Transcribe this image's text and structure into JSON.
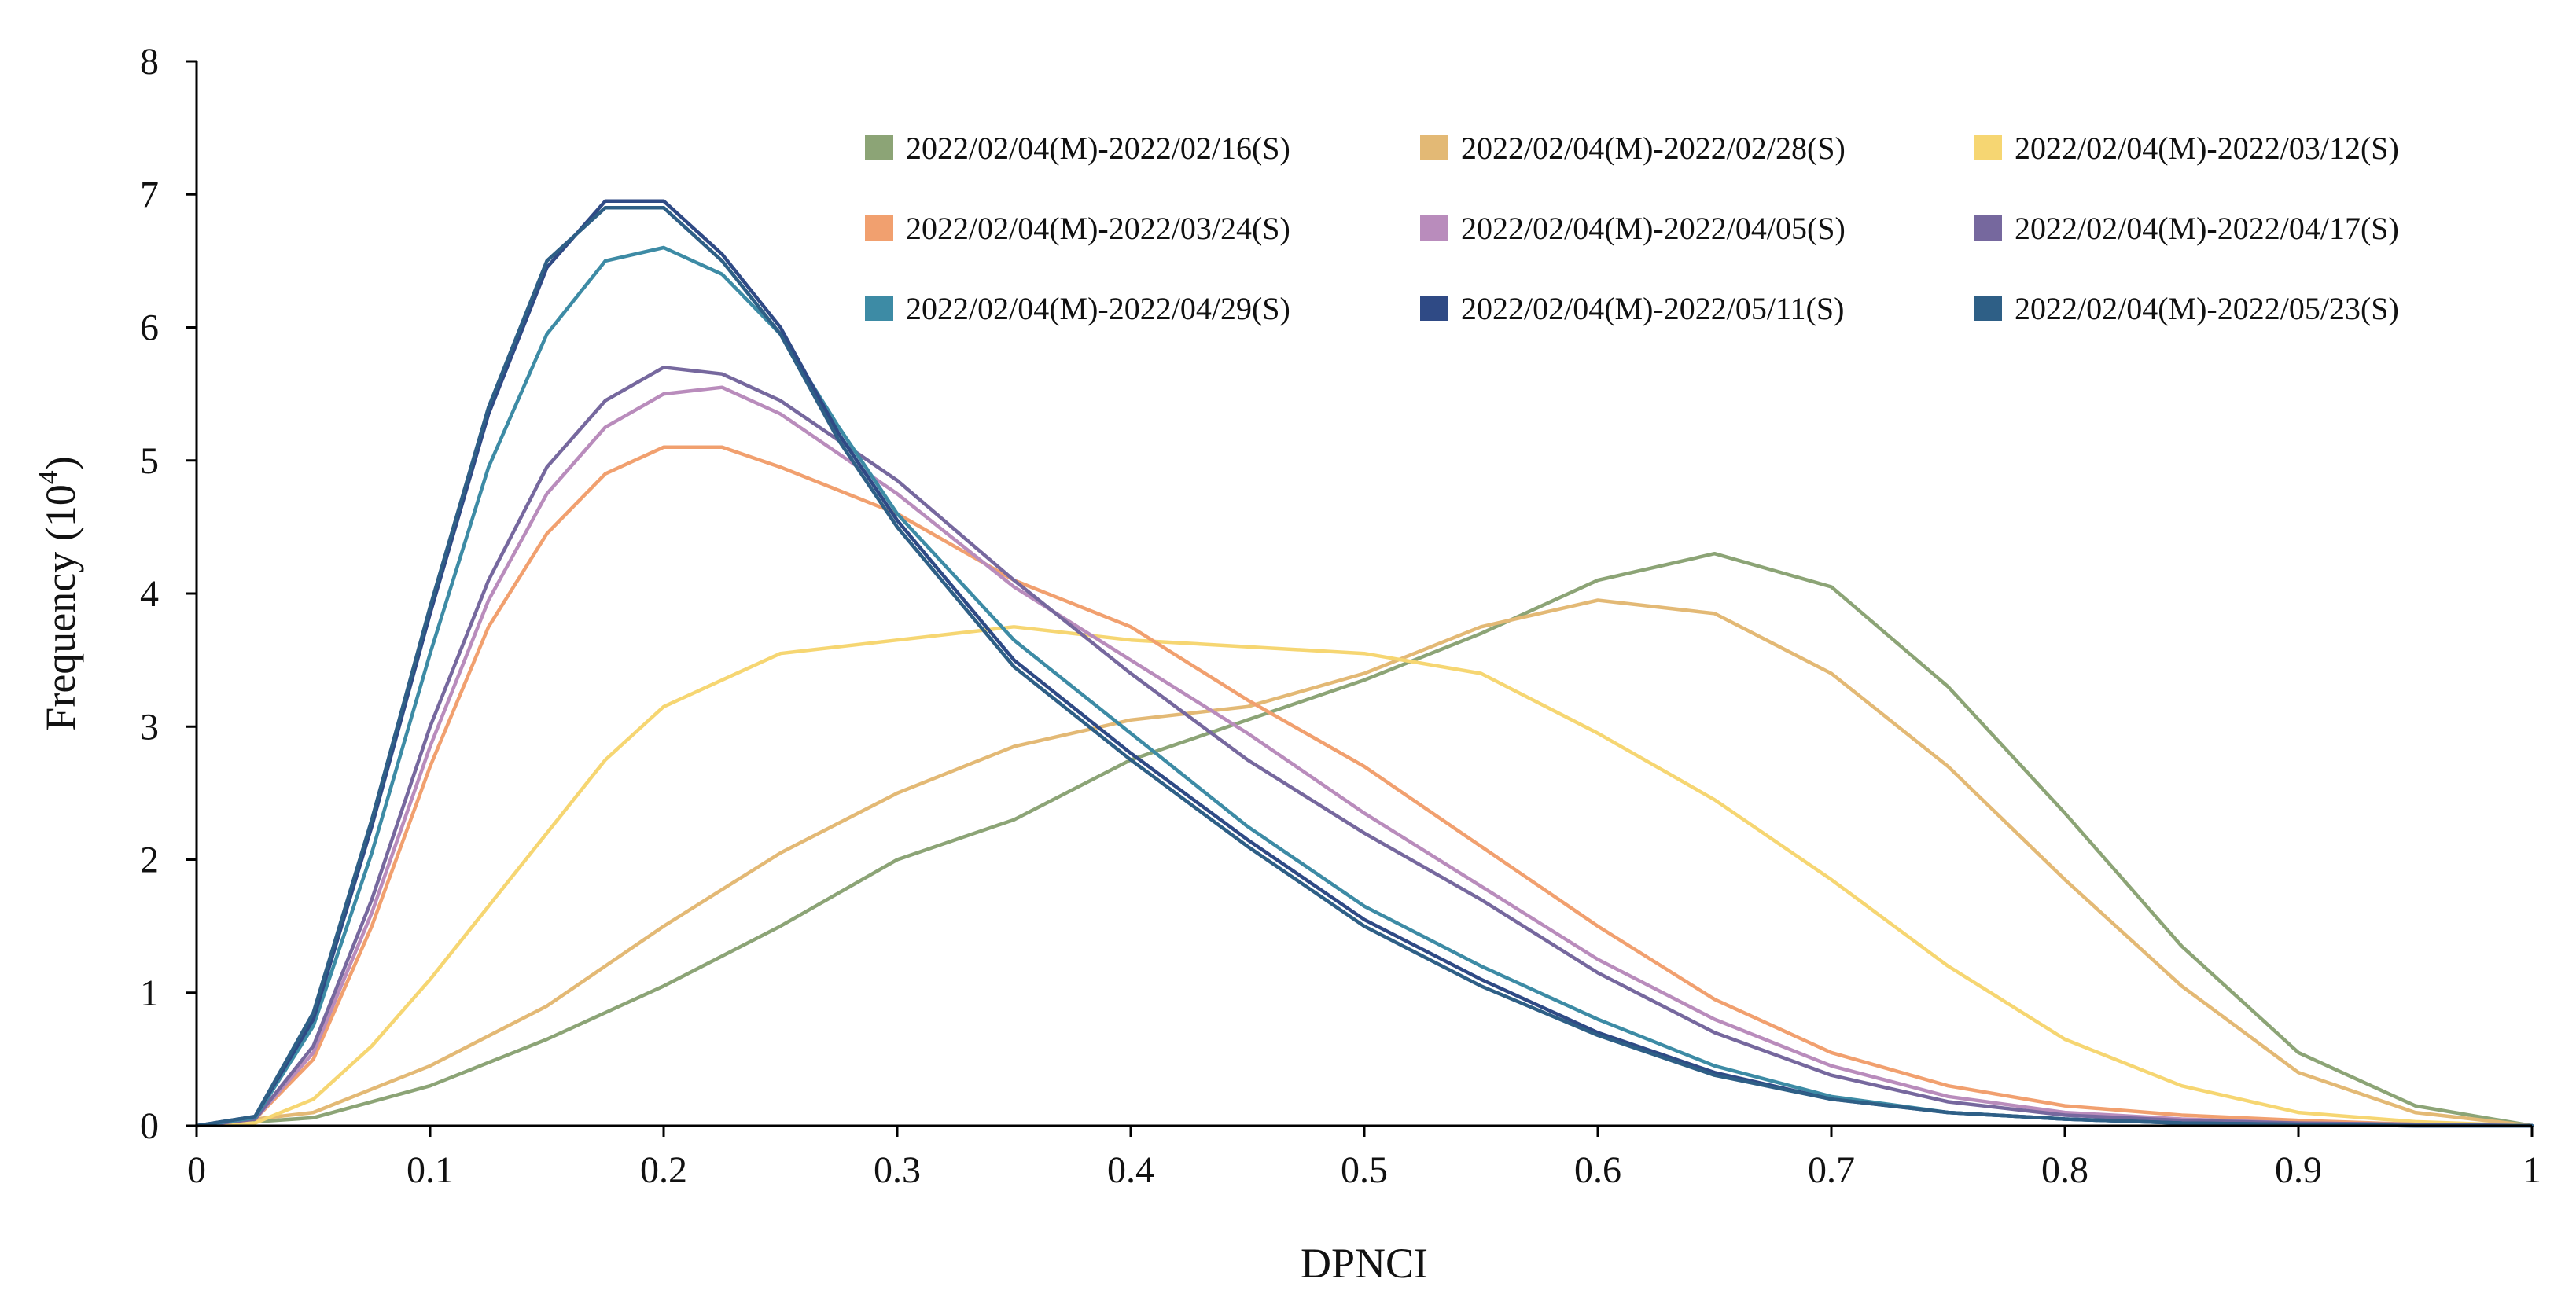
{
  "chart_data": {
    "type": "line",
    "xlabel": "DPNCI",
    "ylabel": "Frequency (10",
    "ylabel_sup": "4",
    "ylabel_close": ")",
    "xlim": [
      0,
      1
    ],
    "ylim": [
      0,
      8
    ],
    "xticks": [
      "0",
      "0.1",
      "0.2",
      "0.3",
      "0.4",
      "0.5",
      "0.6",
      "0.7",
      "0.8",
      "0.9",
      "1"
    ],
    "xtick_values": [
      0,
      0.1,
      0.2,
      0.3,
      0.4,
      0.5,
      0.6,
      0.7,
      0.8,
      0.9,
      1
    ],
    "yticks": [
      "0",
      "1",
      "2",
      "3",
      "4",
      "5",
      "6",
      "7",
      "8"
    ],
    "ytick_values": [
      0,
      1,
      2,
      3,
      4,
      5,
      6,
      7,
      8
    ],
    "grid": false,
    "legend_position": "top-right",
    "series": [
      {
        "name": "2022/02/04(M)-2022/02/16(S)",
        "color": "#8ca476",
        "x": [
          0.0,
          0.05,
          0.1,
          0.15,
          0.2,
          0.25,
          0.3,
          0.35,
          0.4,
          0.45,
          0.5,
          0.55,
          0.6,
          0.65,
          0.7,
          0.75,
          0.8,
          0.85,
          0.9,
          0.95,
          1.0
        ],
        "y": [
          0.0,
          0.06,
          0.3,
          0.65,
          1.05,
          1.5,
          2.0,
          2.3,
          2.75,
          3.05,
          3.35,
          3.7,
          4.1,
          4.3,
          4.05,
          3.3,
          2.35,
          1.35,
          0.55,
          0.15,
          0.0
        ]
      },
      {
        "name": "2022/02/04(M)-2022/02/28(S)",
        "color": "#e3b975",
        "x": [
          0.0,
          0.05,
          0.1,
          0.15,
          0.2,
          0.25,
          0.3,
          0.35,
          0.4,
          0.45,
          0.5,
          0.55,
          0.6,
          0.65,
          0.7,
          0.75,
          0.8,
          0.85,
          0.9,
          0.95,
          1.0
        ],
        "y": [
          0.0,
          0.1,
          0.45,
          0.9,
          1.5,
          2.05,
          2.5,
          2.85,
          3.05,
          3.15,
          3.4,
          3.75,
          3.95,
          3.85,
          3.4,
          2.7,
          1.85,
          1.05,
          0.4,
          0.1,
          0.0
        ]
      },
      {
        "name": "2022/02/04(M)-2022/03/12(S)",
        "color": "#f6d672",
        "x": [
          0.0,
          0.025,
          0.05,
          0.075,
          0.1,
          0.125,
          0.15,
          0.175,
          0.2,
          0.25,
          0.3,
          0.35,
          0.4,
          0.45,
          0.5,
          0.55,
          0.6,
          0.65,
          0.7,
          0.75,
          0.8,
          0.85,
          0.9,
          0.95,
          1.0
        ],
        "y": [
          0.0,
          0.02,
          0.2,
          0.6,
          1.1,
          1.65,
          2.2,
          2.75,
          3.15,
          3.55,
          3.65,
          3.75,
          3.65,
          3.6,
          3.55,
          3.4,
          2.95,
          2.45,
          1.85,
          1.2,
          0.65,
          0.3,
          0.1,
          0.03,
          0.0
        ]
      },
      {
        "name": "2022/02/04(M)-2022/03/24(S)",
        "color": "#f1a06f",
        "x": [
          0.0,
          0.025,
          0.05,
          0.075,
          0.1,
          0.125,
          0.15,
          0.175,
          0.2,
          0.225,
          0.25,
          0.3,
          0.35,
          0.4,
          0.45,
          0.5,
          0.55,
          0.6,
          0.65,
          0.7,
          0.75,
          0.8,
          0.85,
          0.9,
          0.95,
          1.0
        ],
        "y": [
          0.0,
          0.05,
          0.5,
          1.5,
          2.7,
          3.75,
          4.45,
          4.9,
          5.1,
          5.1,
          4.95,
          4.6,
          4.1,
          3.75,
          3.2,
          2.7,
          2.1,
          1.5,
          0.95,
          0.55,
          0.3,
          0.15,
          0.08,
          0.04,
          0.01,
          0.0
        ]
      },
      {
        "name": "2022/02/04(M)-2022/04/05(S)",
        "color": "#b98cbc",
        "x": [
          0.0,
          0.025,
          0.05,
          0.075,
          0.1,
          0.125,
          0.15,
          0.175,
          0.2,
          0.225,
          0.25,
          0.3,
          0.35,
          0.4,
          0.45,
          0.5,
          0.55,
          0.6,
          0.65,
          0.7,
          0.75,
          0.8,
          0.85,
          0.9,
          0.95,
          1.0
        ],
        "y": [
          0.0,
          0.05,
          0.55,
          1.6,
          2.85,
          3.95,
          4.75,
          5.25,
          5.5,
          5.55,
          5.35,
          4.75,
          4.05,
          3.5,
          2.95,
          2.35,
          1.8,
          1.25,
          0.8,
          0.45,
          0.22,
          0.1,
          0.05,
          0.02,
          0.01,
          0.0
        ]
      },
      {
        "name": "2022/02/04(M)-2022/04/17(S)",
        "color": "#76689e",
        "x": [
          0.0,
          0.025,
          0.05,
          0.075,
          0.1,
          0.125,
          0.15,
          0.175,
          0.2,
          0.225,
          0.25,
          0.3,
          0.35,
          0.4,
          0.45,
          0.5,
          0.55,
          0.6,
          0.65,
          0.7,
          0.75,
          0.8,
          0.85,
          0.9,
          0.95,
          1.0
        ],
        "y": [
          0.0,
          0.05,
          0.6,
          1.7,
          3.0,
          4.1,
          4.95,
          5.45,
          5.7,
          5.65,
          5.45,
          4.85,
          4.1,
          3.4,
          2.75,
          2.2,
          1.7,
          1.15,
          0.7,
          0.38,
          0.18,
          0.08,
          0.04,
          0.02,
          0.01,
          0.0
        ]
      },
      {
        "name": "2022/02/04(M)-2022/04/29(S)",
        "color": "#3d8ba5",
        "x": [
          0.0,
          0.025,
          0.05,
          0.075,
          0.1,
          0.125,
          0.15,
          0.175,
          0.2,
          0.225,
          0.25,
          0.275,
          0.3,
          0.35,
          0.4,
          0.45,
          0.5,
          0.55,
          0.6,
          0.65,
          0.7,
          0.75,
          0.8,
          0.85,
          0.9,
          0.95,
          1.0
        ],
        "y": [
          0.0,
          0.06,
          0.75,
          2.05,
          3.55,
          4.95,
          5.95,
          6.5,
          6.6,
          6.4,
          5.95,
          5.25,
          4.6,
          3.65,
          2.95,
          2.25,
          1.65,
          1.2,
          0.8,
          0.45,
          0.22,
          0.1,
          0.05,
          0.02,
          0.01,
          0.0,
          0.0
        ]
      },
      {
        "name": "2022/02/04(M)-2022/05/11(S)",
        "color": "#2f4a85",
        "x": [
          0.0,
          0.025,
          0.05,
          0.075,
          0.1,
          0.125,
          0.15,
          0.175,
          0.2,
          0.225,
          0.25,
          0.275,
          0.3,
          0.35,
          0.4,
          0.45,
          0.5,
          0.55,
          0.6,
          0.65,
          0.7,
          0.75,
          0.8,
          0.85,
          0.9,
          0.95,
          1.0
        ],
        "y": [
          0.0,
          0.07,
          0.8,
          2.25,
          3.85,
          5.35,
          6.45,
          6.95,
          6.95,
          6.55,
          6.0,
          5.2,
          4.55,
          3.5,
          2.8,
          2.15,
          1.55,
          1.1,
          0.7,
          0.4,
          0.2,
          0.1,
          0.05,
          0.02,
          0.01,
          0.0,
          0.0
        ]
      },
      {
        "name": "2022/02/04(M)-2022/05/23(S)",
        "color": "#2e5f86",
        "x": [
          0.0,
          0.025,
          0.05,
          0.075,
          0.1,
          0.125,
          0.15,
          0.175,
          0.2,
          0.225,
          0.25,
          0.275,
          0.3,
          0.35,
          0.4,
          0.45,
          0.5,
          0.55,
          0.6,
          0.65,
          0.7,
          0.75,
          0.8,
          0.85,
          0.9,
          0.95,
          1.0
        ],
        "y": [
          0.0,
          0.07,
          0.85,
          2.3,
          3.9,
          5.4,
          6.5,
          6.9,
          6.9,
          6.5,
          5.95,
          5.15,
          4.5,
          3.45,
          2.75,
          2.1,
          1.5,
          1.05,
          0.68,
          0.38,
          0.2,
          0.1,
          0.05,
          0.02,
          0.01,
          0.0,
          0.0
        ]
      }
    ]
  }
}
